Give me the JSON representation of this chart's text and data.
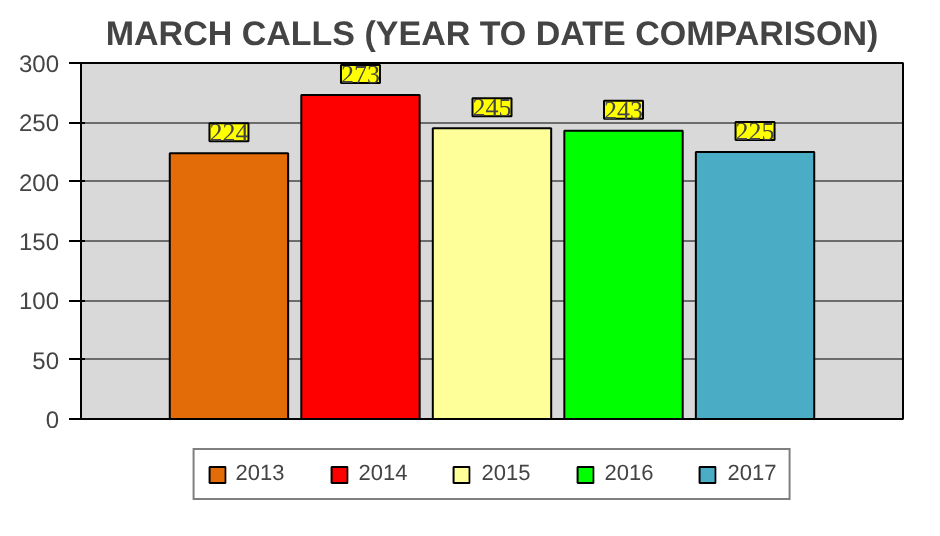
{
  "chart_data": {
    "type": "bar",
    "title": "MARCH CALLS (YEAR TO DATE COMPARISON)",
    "categories": [
      null
    ],
    "series": [
      {
        "name": "2013",
        "color": "#e36c09",
        "values": [
          224
        ]
      },
      {
        "name": "2014",
        "color": "#ff0000",
        "values": [
          273
        ]
      },
      {
        "name": "2015",
        "color": "#ffff99",
        "values": [
          245
        ]
      },
      {
        "name": "2016",
        "color": "#00ff00",
        "values": [
          243
        ]
      },
      {
        "name": "2017",
        "color": "#4bacc6",
        "values": [
          225
        ]
      }
    ],
    "ylim": [
      0,
      300
    ],
    "yticks": [
      0,
      50,
      100,
      150,
      200,
      250,
      300
    ],
    "grid": "y",
    "legend": "bottom",
    "data_labels": true
  }
}
